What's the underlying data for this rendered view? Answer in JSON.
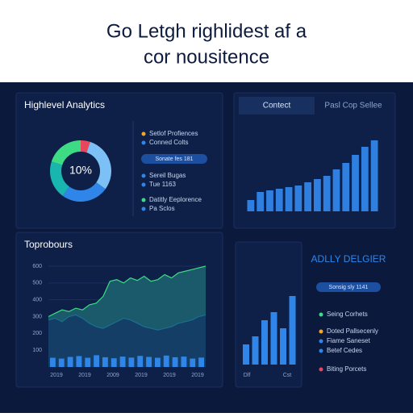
{
  "header": {
    "title_line1": "Go Letgh righlidest af a",
    "title_line2": "cor nousitence"
  },
  "overview": {
    "title": "Highlevel Analytics",
    "donut": {
      "center_label": "10%",
      "values": [
        5,
        30,
        25,
        20,
        20
      ],
      "colors": [
        "#e8465a",
        "#7cc0f5",
        "#2f86e8",
        "#19b6b0",
        "#3ddc84"
      ]
    },
    "legend": [
      {
        "label": "Setlof Profiences",
        "color": "#f5a623"
      },
      {
        "label": "Conned Colts",
        "color": "#2f86e8"
      },
      {
        "label": "Sereil Bugas",
        "color": "#2f86e8"
      },
      {
        "label": "Tue 1163",
        "color": "#2f86e8"
      },
      {
        "label": "Datitly Eeplorence",
        "color": "#3ddc84"
      },
      {
        "label": "Pa Sclos",
        "color": "#2f86e8"
      }
    ],
    "pill": "Sonate fes 181"
  },
  "trend": {
    "tabs": [
      "Contect",
      "Pasl Cop Sellee"
    ],
    "values": [
      14,
      24,
      26,
      28,
      30,
      32,
      36,
      40,
      44,
      52,
      60,
      70,
      80,
      88
    ],
    "color": "#2f7fe0"
  },
  "history": {
    "title": "Toprobours",
    "ylim": [
      0,
      600
    ],
    "yticks": [
      100,
      200,
      300,
      400,
      500,
      600
    ],
    "x_labels": [
      "2019",
      "2019",
      "2009",
      "2019",
      "2019",
      "2019"
    ],
    "area_back": [
      300,
      320,
      340,
      330,
      350,
      340,
      370,
      380,
      420,
      510,
      520,
      500,
      530,
      515,
      540,
      510,
      520,
      550,
      530,
      560,
      570,
      580,
      590,
      600
    ],
    "area_front": [
      280,
      290,
      270,
      300,
      310,
      290,
      260,
      240,
      230,
      250,
      270,
      290,
      280,
      260,
      240,
      230,
      220,
      230,
      240,
      260,
      270,
      280,
      300,
      310
    ],
    "bars": [
      55,
      50,
      60,
      65,
      55,
      70,
      58,
      52,
      62,
      56,
      66,
      60,
      55,
      68,
      58,
      62,
      50,
      56
    ]
  },
  "detail": {
    "values": [
      25,
      35,
      55,
      65,
      45,
      85
    ],
    "x_labels": [
      "Dlf",
      "Cst"
    ]
  },
  "summary": {
    "title": "ADLLY DELGIER",
    "pill": "Sonsig sly 1141",
    "legend": [
      {
        "label": "Seing Corhets",
        "color": "#3ddc84"
      },
      {
        "label": "Doted Pallsecenly",
        "color": "#f5a623"
      },
      {
        "label": "Fiame Saneset",
        "color": "#2f86e8"
      },
      {
        "label": "Betef Cedes",
        "color": "#2f86e8"
      },
      {
        "label": "Biting Porcets",
        "color": "#e8465a"
      }
    ]
  }
}
